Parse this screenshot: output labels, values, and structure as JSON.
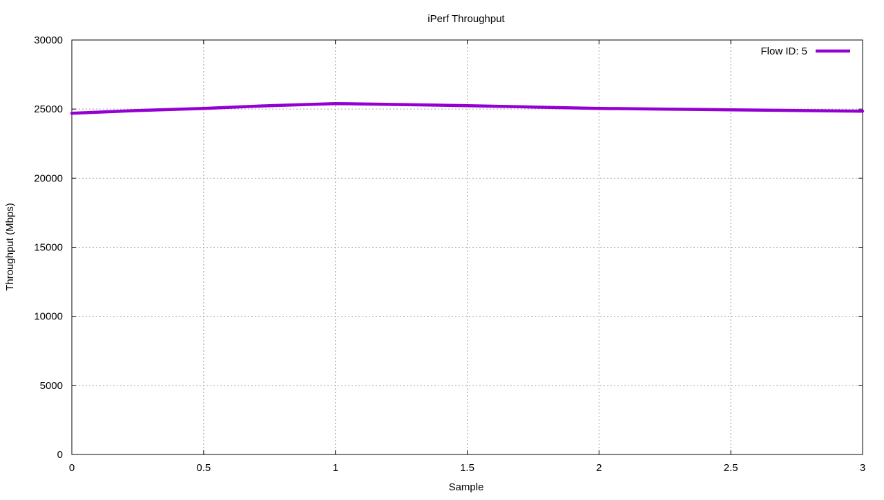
{
  "chart_data": {
    "type": "line",
    "title": "iPerf Throughput",
    "xlabel": "Sample",
    "ylabel": "Throughput (Mbps)",
    "xlim": [
      0,
      3
    ],
    "ylim": [
      0,
      30000
    ],
    "x_ticks": [
      {
        "value": 0,
        "label": "0"
      },
      {
        "value": 0.5,
        "label": "0.5"
      },
      {
        "value": 1,
        "label": "1"
      },
      {
        "value": 1.5,
        "label": "1.5"
      },
      {
        "value": 2,
        "label": "2"
      },
      {
        "value": 2.5,
        "label": "2.5"
      },
      {
        "value": 3,
        "label": "3"
      }
    ],
    "y_ticks": [
      {
        "value": 0,
        "label": "0"
      },
      {
        "value": 5000,
        "label": "5000"
      },
      {
        "value": 10000,
        "label": "10000"
      },
      {
        "value": 15000,
        "label": "15000"
      },
      {
        "value": 20000,
        "label": "20000"
      },
      {
        "value": 25000,
        "label": "25000"
      },
      {
        "value": 30000,
        "label": "30000"
      }
    ],
    "grid": true,
    "legend_position": "top-right",
    "series": [
      {
        "name": "Flow ID: 5",
        "color": "#9400d3",
        "x": [
          0,
          0.25,
          0.5,
          0.75,
          1,
          1.25,
          1.5,
          1.75,
          2,
          2.25,
          2.5,
          2.75,
          3
        ],
        "values": [
          24700,
          24900,
          25050,
          25250,
          25400,
          25330,
          25250,
          25150,
          25050,
          25000,
          24950,
          24900,
          24850
        ]
      }
    ]
  }
}
